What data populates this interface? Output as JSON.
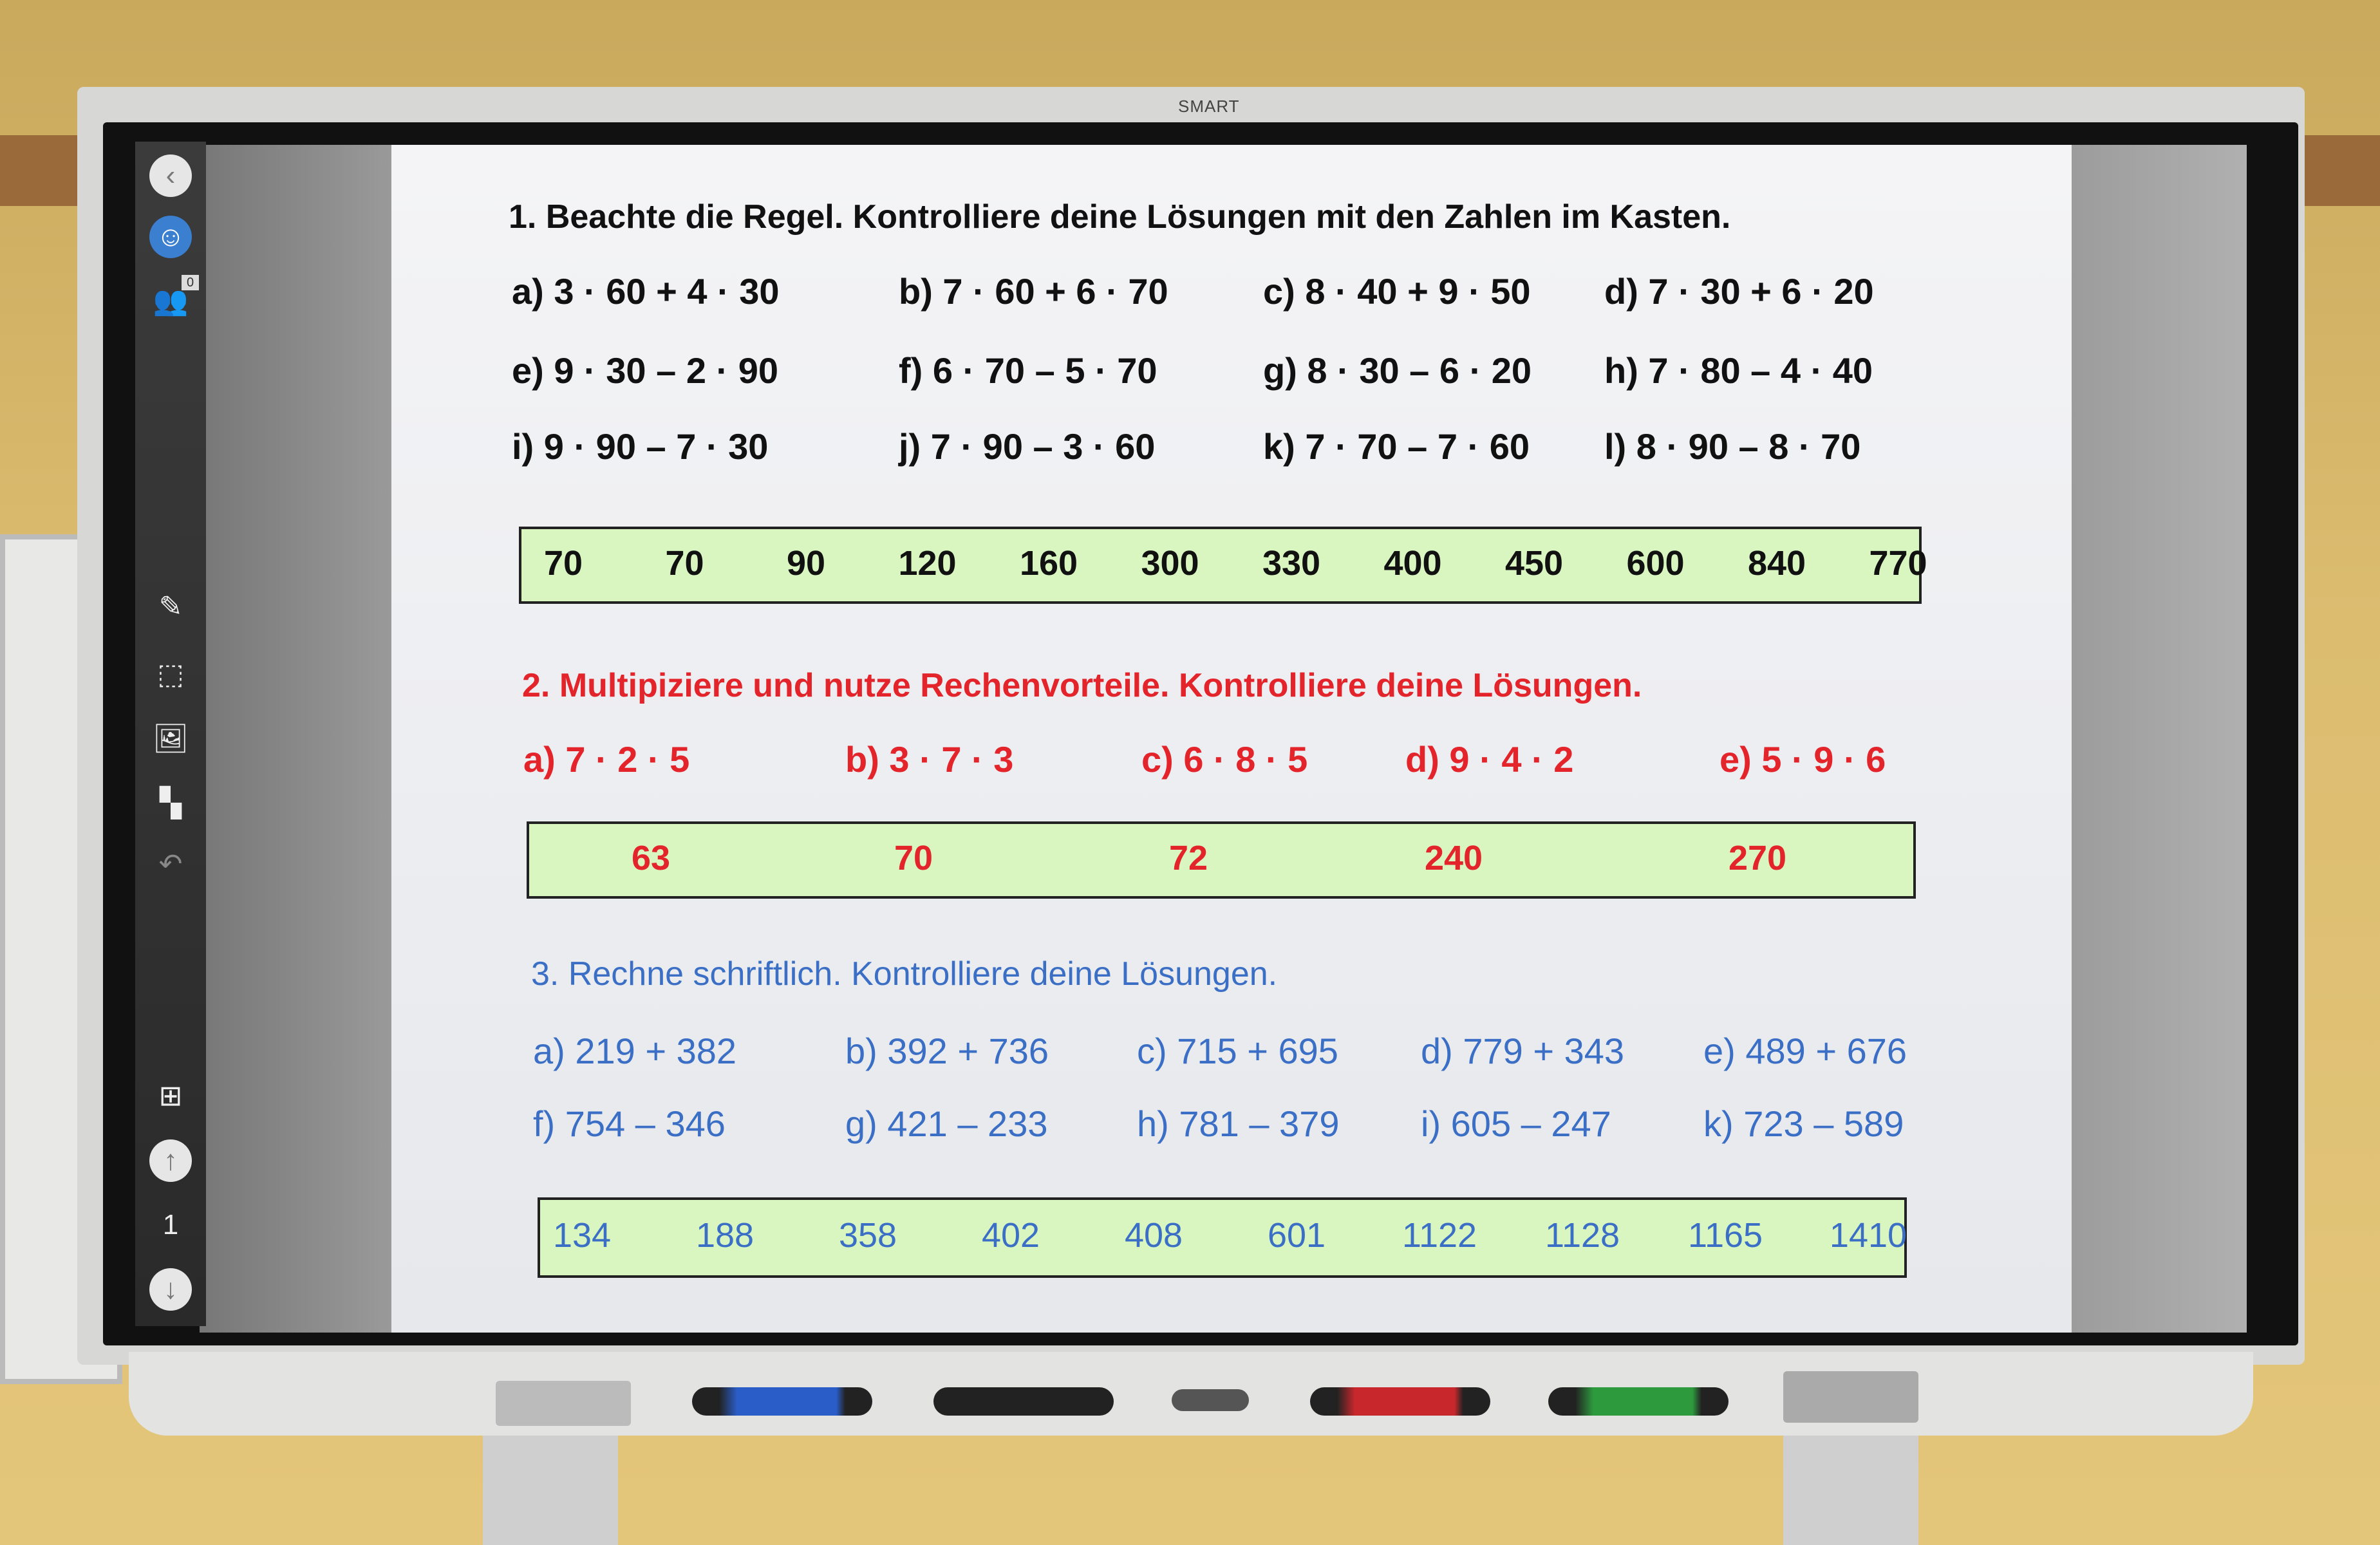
{
  "device": {
    "brand": "SMART"
  },
  "sidebar": {
    "items": [
      {
        "name": "back-button",
        "icon": "chevron-left-icon",
        "glyph": "‹"
      },
      {
        "name": "avatar-button",
        "icon": "avatar-icon",
        "glyph": "☺"
      },
      {
        "name": "participants-button",
        "icon": "users-icon",
        "glyph": "👥",
        "badge": "0"
      },
      {
        "name": "pen-tool-button",
        "icon": "pencil-icon",
        "glyph": "✎"
      },
      {
        "name": "select-tool-button",
        "icon": "selection-icon",
        "glyph": "⬚"
      },
      {
        "name": "insert-image-button",
        "icon": "image-add-icon",
        "glyph": "🖼"
      },
      {
        "name": "add-widget-button",
        "icon": "widgets-icon",
        "glyph": "▚"
      },
      {
        "name": "undo-button",
        "icon": "undo-icon",
        "glyph": "↶"
      },
      {
        "name": "add-page-button",
        "icon": "plus-box-icon",
        "glyph": "⊞"
      },
      {
        "name": "page-up-button",
        "icon": "arrow-up-icon",
        "glyph": "↑"
      },
      {
        "name": "page-counter",
        "icon": "pages-icon",
        "glyph": "1"
      },
      {
        "name": "page-down-button",
        "icon": "arrow-down-icon",
        "glyph": "↓"
      }
    ]
  },
  "colors": {
    "section1": "#111111",
    "section2": "#e3242b",
    "section3": "#3b6fc6",
    "answer_box": "#d9f5c0"
  },
  "section1": {
    "heading": "1. Beachte die Regel. Kontrolliere deine Lösungen mit den Zahlen im Kasten.",
    "tasks": [
      "a) 3 · 60 + 4 · 30",
      "b) 7 · 60 + 6 · 70",
      "c) 8 · 40 + 9 · 50",
      "d) 7 · 30 + 6 · 20",
      "e) 9 · 30 – 2 · 90",
      "f) 6 · 70 – 5 · 70",
      "g) 8 · 30 – 6 · 20",
      "h) 7 · 80 – 4 · 40",
      "i) 9 · 90 – 7 · 30",
      "j) 7 · 90 – 3 · 60",
      "k) 7 ·  70 – 7 · 60",
      "l) 8 · 90 – 8 · 70"
    ],
    "answers": [
      "70",
      "70",
      "90",
      "120",
      "160",
      "300",
      "330",
      "400",
      "450",
      "600",
      "840",
      "770"
    ]
  },
  "section2": {
    "heading": "2. Multipiziere und nutze Rechenvorteile. Kontrolliere deine Lösungen.",
    "tasks": [
      "a) 7 · 2 · 5",
      "b) 3 · 7 · 3",
      "c) 6 · 8 · 5",
      "d) 9 · 4 · 2",
      "e) 5 · 9 · 6"
    ],
    "answers": [
      "63",
      "70",
      "72",
      "240",
      "270"
    ]
  },
  "section3": {
    "heading": "3. Rechne schriftlich. Kontrolliere deine Lösungen.",
    "tasks": [
      "a) 219 + 382",
      "b) 392 + 736",
      "c) 715 + 695",
      "d) 779 + 343",
      "e) 489 + 676",
      "f) 754 – 346",
      "g) 421 – 233",
      "h) 781 – 379",
      "i) 605 – 247",
      "k) 723 – 589"
    ],
    "answers": [
      "134",
      "188",
      "358",
      "402",
      "408",
      "601",
      "1122",
      "1128",
      "1165",
      "1410"
    ]
  }
}
